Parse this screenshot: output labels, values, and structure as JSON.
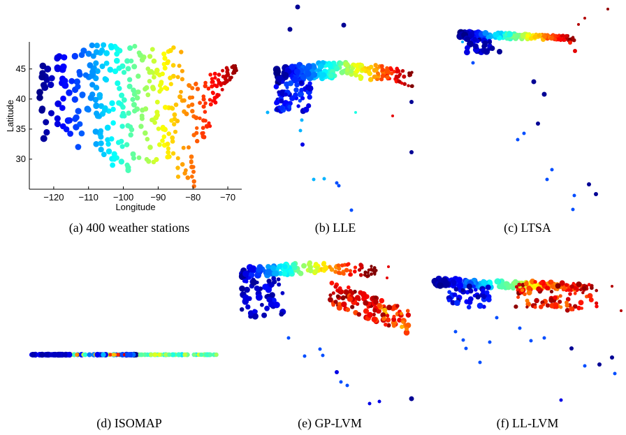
{
  "chart_data": [
    {
      "type": "scatter",
      "caption": "(a) 400 weather stations",
      "xlabel": "Longitude",
      "ylabel": "Latitude",
      "xlim": [
        -127,
        -66
      ],
      "ylim": [
        25,
        49.5
      ],
      "xticks": [
        -120,
        -110,
        -100,
        -90,
        -80,
        -70
      ],
      "yticks": [
        30,
        35,
        40,
        45
      ],
      "color_by": "longitude",
      "colormap": "jet"
    },
    {
      "type": "scatter",
      "caption": "(b) LLE"
    },
    {
      "type": "scatter",
      "caption": "(c) LTSA"
    },
    {
      "type": "scatter",
      "caption": "(d) ISOMAP"
    },
    {
      "type": "scatter",
      "caption": "(e) GP-LVM"
    },
    {
      "type": "scatter",
      "caption": "(f) LL-LVM"
    }
  ]
}
